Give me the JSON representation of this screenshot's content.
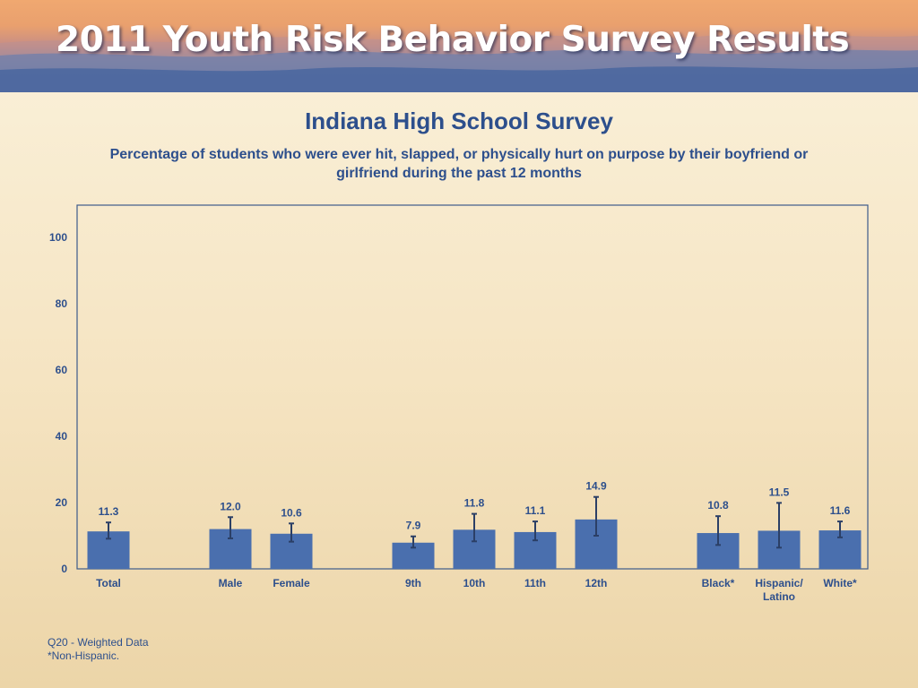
{
  "header": {
    "banner_title": "2011 Youth Risk Behavior Survey Results"
  },
  "chart_data": {
    "type": "bar",
    "title": "Indiana High School Survey",
    "subtitle": "Percentage of students who were ever hit, slapped, or physically hurt on purpose by their boyfriend or girlfriend during the past 12 months",
    "xlabel": "",
    "ylabel": "",
    "ylim": [
      0,
      110
    ],
    "yticks": [
      0,
      20,
      40,
      60,
      80,
      100
    ],
    "grid": false,
    "legend": "none",
    "bar_color": "#4a6fae",
    "error_bar_color": "#2b3f66",
    "categories": [
      "Total",
      "Male",
      "Female",
      "9th",
      "10th",
      "11th",
      "12th",
      "Black*",
      "Hispanic/ Latino",
      "White*"
    ],
    "values": [
      11.3,
      12.0,
      10.6,
      7.9,
      11.8,
      11.1,
      14.9,
      10.8,
      11.5,
      11.6
    ],
    "value_labels": [
      "11.3",
      "12.0",
      "10.6",
      "7.9",
      "11.8",
      "11.1",
      "14.9",
      "10.8",
      "11.5",
      "11.6"
    ],
    "ci_lower": [
      9.1,
      9.2,
      8.2,
      6.4,
      8.3,
      8.6,
      10.0,
      7.2,
      6.4,
      9.5
    ],
    "ci_upper": [
      14.0,
      15.6,
      13.7,
      9.8,
      16.6,
      14.3,
      21.7,
      15.9,
      19.9,
      14.3
    ],
    "groups": [
      [
        0
      ],
      [
        1,
        2
      ],
      [
        3,
        4,
        5,
        6
      ],
      [
        7,
        8,
        9
      ]
    ]
  },
  "footnotes": {
    "line1": "Q20 - Weighted Data",
    "line2": "*Non-Hispanic."
  }
}
